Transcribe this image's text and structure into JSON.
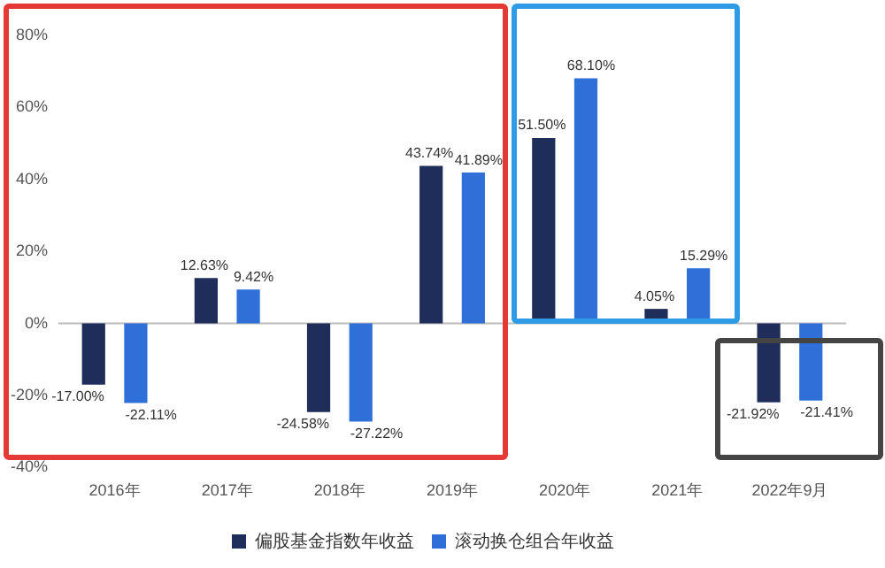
{
  "chart_data": {
    "type": "bar",
    "categories": [
      "2016年",
      "2017年",
      "2018年",
      "2019年",
      "2020年",
      "2021年",
      "2022年9月"
    ],
    "series": [
      {
        "name": "偏股基金指数年收益",
        "color": "#1f2d5a",
        "values": [
          -17.0,
          12.63,
          -24.58,
          43.74,
          51.5,
          4.05,
          -21.92
        ],
        "value_labels": [
          "-17.00%",
          "12.63%",
          "-24.58%",
          "43.74%",
          "51.50%",
          "4.05%",
          "-21.92%"
        ]
      },
      {
        "name": "滚动换仓组合年收益",
        "color": "#2e6fd8",
        "values": [
          -22.11,
          9.42,
          -27.22,
          41.89,
          68.1,
          15.29,
          -21.41
        ],
        "value_labels": [
          "-22.11%",
          "9.42%",
          "-27.22%",
          "41.89%",
          "68.10%",
          "15.29%",
          "-21.41%"
        ]
      }
    ],
    "ylim": [
      -40,
      80
    ],
    "yticks": [
      {
        "value": -40,
        "label": "-40%"
      },
      {
        "value": -20,
        "label": "-20%"
      },
      {
        "value": 0,
        "label": "0%"
      },
      {
        "value": 20,
        "label": "20%"
      },
      {
        "value": 40,
        "label": "40%"
      },
      {
        "value": 60,
        "label": "60%"
      },
      {
        "value": 80,
        "label": "80%"
      }
    ],
    "ref_lines": [
      {
        "axis": "y",
        "value": 0,
        "color": "#bbbbbb"
      }
    ],
    "grid": false,
    "legend": "bottom"
  }
}
